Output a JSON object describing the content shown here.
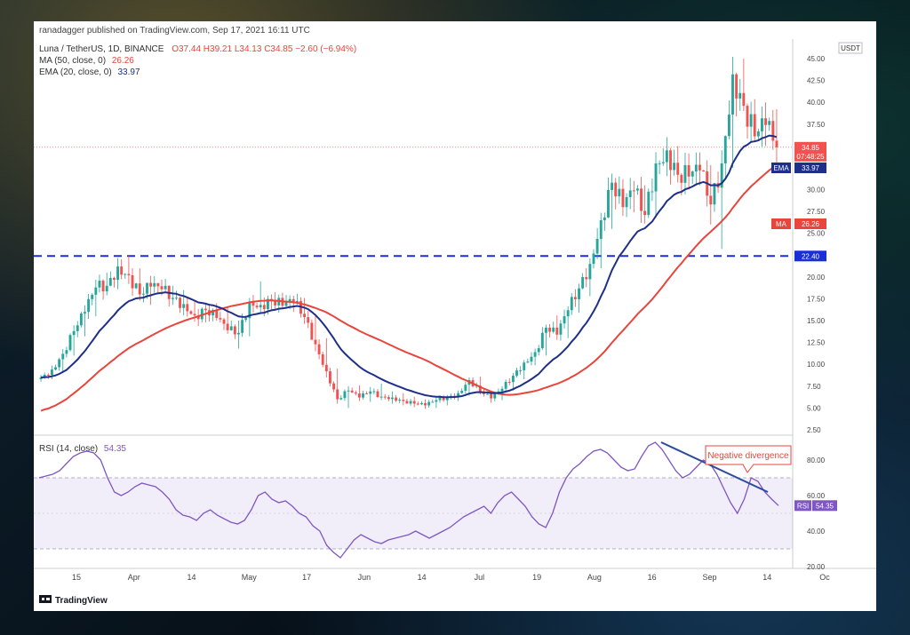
{
  "header": {
    "published": "ranadagger published on TradingView.com, Sep 17, 2021 16:11 UTC",
    "symbol_line": "Luna / TetherUS, 1D, BINANCE",
    "ohlc": "O37.44  H39.21  L34.13  C34.85  −2.60 (−6.94%)",
    "ma_label": "MA (50, close, 0)",
    "ma_value": "26.26",
    "ema_label": "EMA (20, close, 0)",
    "ema_value": "33.97"
  },
  "colors": {
    "up": "#26a69a",
    "down": "#ef5350",
    "ema": "#1e2f8a",
    "ma": "#e8453c",
    "rsi": "#7e57c2",
    "support": "#1a2fd6",
    "divergence": "#2a4aa0"
  },
  "rsi": {
    "label": "RSI (14, close)",
    "value": "54.35",
    "tag": "RSI",
    "band": [
      30,
      70
    ],
    "ticks": [
      "80.00",
      "60.00",
      "40.00",
      "20.00"
    ]
  },
  "price_axis": {
    "unit": "USDT",
    "ticks": [
      "45.00",
      "42.50",
      "40.00",
      "37.50",
      "35.00",
      "32.50",
      "30.00",
      "27.50",
      "25.00",
      "22.50",
      "20.00",
      "17.50",
      "15.00",
      "12.50",
      "10.00",
      "7.50",
      "5.00",
      "2.50"
    ],
    "last_price": "34.85",
    "countdown": "07:48:25",
    "ema_tag": "EMA",
    "ema_tag_value": "33.97",
    "ma_tag": "MA",
    "ma_tag_value": "26.26",
    "support_value": "22.40"
  },
  "time_axis": {
    "labels": [
      "15",
      "Apr",
      "14",
      "May",
      "17",
      "Jun",
      "14",
      "Jul",
      "19",
      "Aug",
      "16",
      "Sep",
      "14",
      "Oc"
    ]
  },
  "annotation": {
    "text": "Negative divergence"
  },
  "footer": {
    "brand": "TradingView"
  },
  "chart_data": [
    {
      "type": "candlestick",
      "title": "Luna / TetherUS, 1D, BINANCE",
      "ylim": [
        2.5,
        45
      ],
      "series": [
        {
          "name": "Luna / TetherUS",
          "ohlc_waypoints": [
            [
              8.3,
              8.8,
              8.0,
              8.5
            ],
            [
              8.5,
              9.6,
              8.3,
              9.4
            ],
            [
              9.4,
              11.5,
              9.0,
              11.2
            ],
            [
              11.2,
              14.0,
              11.0,
              13.8
            ],
            [
              13.8,
              16.5,
              13.2,
              16.0
            ],
            [
              16.0,
              19.2,
              15.5,
              18.8
            ],
            [
              18.8,
              20.5,
              18.0,
              19.0
            ],
            [
              19.0,
              21.8,
              18.6,
              21.2
            ],
            [
              21.2,
              22.4,
              19.8,
              20.2
            ],
            [
              20.2,
              21.0,
              17.5,
              18.0
            ],
            [
              18.0,
              19.4,
              16.8,
              18.9
            ],
            [
              18.9,
              19.5,
              17.9,
              18.6
            ],
            [
              18.6,
              19.0,
              17.2,
              17.6
            ],
            [
              17.6,
              18.5,
              16.5,
              16.9
            ],
            [
              16.9,
              17.2,
              15.2,
              15.6
            ],
            [
              15.6,
              16.8,
              14.8,
              16.2
            ],
            [
              16.2,
              17.0,
              15.0,
              15.3
            ],
            [
              15.3,
              16.5,
              13.5,
              13.9
            ],
            [
              13.9,
              15.0,
              11.8,
              13.6
            ],
            [
              13.6,
              17.5,
              13.2,
              17.1
            ],
            [
              17.1,
              19.5,
              16.2,
              16.8
            ],
            [
              16.8,
              18.0,
              16.3,
              17.4
            ],
            [
              17.4,
              18.2,
              16.4,
              16.7
            ],
            [
              16.7,
              17.8,
              16.0,
              17.2
            ],
            [
              17.2,
              17.6,
              15.0,
              15.4
            ],
            [
              15.4,
              15.8,
              11.5,
              12.3
            ],
            [
              12.3,
              13.0,
              8.5,
              9.2
            ],
            [
              9.2,
              9.5,
              5.5,
              6.0
            ],
            [
              6.0,
              7.5,
              5.0,
              7.0
            ],
            [
              7.0,
              7.6,
              5.8,
              6.2
            ],
            [
              6.2,
              7.4,
              5.7,
              6.9
            ],
            [
              6.9,
              7.8,
              5.9,
              6.3
            ],
            [
              6.3,
              6.9,
              5.5,
              6.2
            ],
            [
              6.2,
              6.7,
              5.3,
              5.8
            ],
            [
              5.8,
              6.3,
              5.1,
              5.5
            ],
            [
              5.5,
              6.0,
              4.9,
              5.3
            ],
            [
              5.3,
              6.2,
              5.0,
              5.9
            ],
            [
              5.9,
              6.5,
              5.3,
              6.2
            ],
            [
              6.2,
              7.0,
              5.8,
              6.7
            ],
            [
              6.7,
              8.5,
              6.4,
              8.2
            ],
            [
              8.2,
              8.6,
              6.6,
              6.9
            ],
            [
              6.9,
              7.0,
              5.6,
              6.1
            ],
            [
              6.1,
              7.5,
              5.9,
              7.2
            ],
            [
              7.2,
              9.0,
              7.0,
              8.7
            ],
            [
              8.7,
              10.5,
              8.3,
              10.2
            ],
            [
              10.2,
              11.8,
              9.9,
              11.4
            ],
            [
              11.4,
              14.5,
              11.0,
              14.2
            ],
            [
              14.2,
              15.6,
              12.8,
              13.4
            ],
            [
              13.4,
              16.5,
              13.0,
              16.2
            ],
            [
              16.2,
              19.0,
              15.9,
              18.7
            ],
            [
              18.7,
              22.0,
              17.8,
              21.5
            ],
            [
              21.5,
              27.0,
              21.0,
              26.5
            ],
            [
              26.5,
              31.5,
              25.5,
              30.8
            ],
            [
              30.8,
              31.2,
              27.0,
              28.0
            ],
            [
              28.0,
              30.5,
              27.4,
              29.9
            ],
            [
              29.9,
              30.5,
              26.2,
              27.1
            ],
            [
              27.1,
              33.5,
              26.8,
              33.0
            ],
            [
              33.0,
              36.0,
              32.0,
              34.5
            ],
            [
              34.5,
              35.0,
              31.0,
              31.7
            ],
            [
              31.7,
              33.0,
              30.0,
              31.5
            ],
            [
              31.5,
              34.0,
              30.5,
              32.2
            ],
            [
              32.2,
              32.8,
              26.0,
              28.3
            ],
            [
              28.3,
              33.5,
              23.2,
              33.0
            ],
            [
              33.0,
              43.5,
              32.5,
              43.2
            ],
            [
              43.2,
              45.0,
              39.0,
              39.6
            ],
            [
              39.6,
              40.0,
              35.5,
              36.1
            ],
            [
              36.1,
              38.0,
              35.0,
              37.4
            ],
            [
              37.44,
              39.21,
              34.13,
              34.85
            ]
          ]
        },
        {
          "name": "EMA (20, close, 0)",
          "last": 33.97
        },
        {
          "name": "MA (50, close, 0)",
          "last": 26.26
        }
      ],
      "annotations": [
        {
          "text": "22.40",
          "type": "horizontal-dashed-line",
          "y": 22.4
        }
      ]
    },
    {
      "type": "line",
      "title": "RSI (14, close)",
      "ylim": [
        20,
        90
      ],
      "series": [
        {
          "name": "RSI (14, close)",
          "values": [
            70,
            71,
            72,
            74,
            78,
            82,
            84,
            85,
            84,
            80,
            70,
            62,
            60,
            62,
            65,
            67,
            66,
            65,
            62,
            58,
            52,
            49,
            48,
            46,
            50,
            52,
            49,
            47,
            45,
            44,
            46,
            52,
            60,
            62,
            58,
            56,
            57,
            54,
            50,
            48,
            43,
            40,
            32,
            28,
            25,
            30,
            35,
            38,
            36,
            34,
            33,
            35,
            36,
            37,
            38,
            40,
            38,
            36,
            38,
            40,
            42,
            45,
            48,
            50,
            52,
            54,
            50,
            56,
            60,
            62,
            58,
            54,
            48,
            44,
            42,
            50,
            62,
            70,
            75,
            78,
            82,
            85,
            86,
            84,
            80,
            76,
            74,
            75,
            82,
            88,
            90,
            86,
            80,
            74,
            70,
            72,
            76,
            80,
            78,
            72,
            64,
            56,
            50,
            58,
            70,
            68,
            62,
            58,
            54.35
          ]
        }
      ],
      "annotations": [
        {
          "text": "Negative divergence",
          "type": "trendline"
        }
      ]
    }
  ]
}
